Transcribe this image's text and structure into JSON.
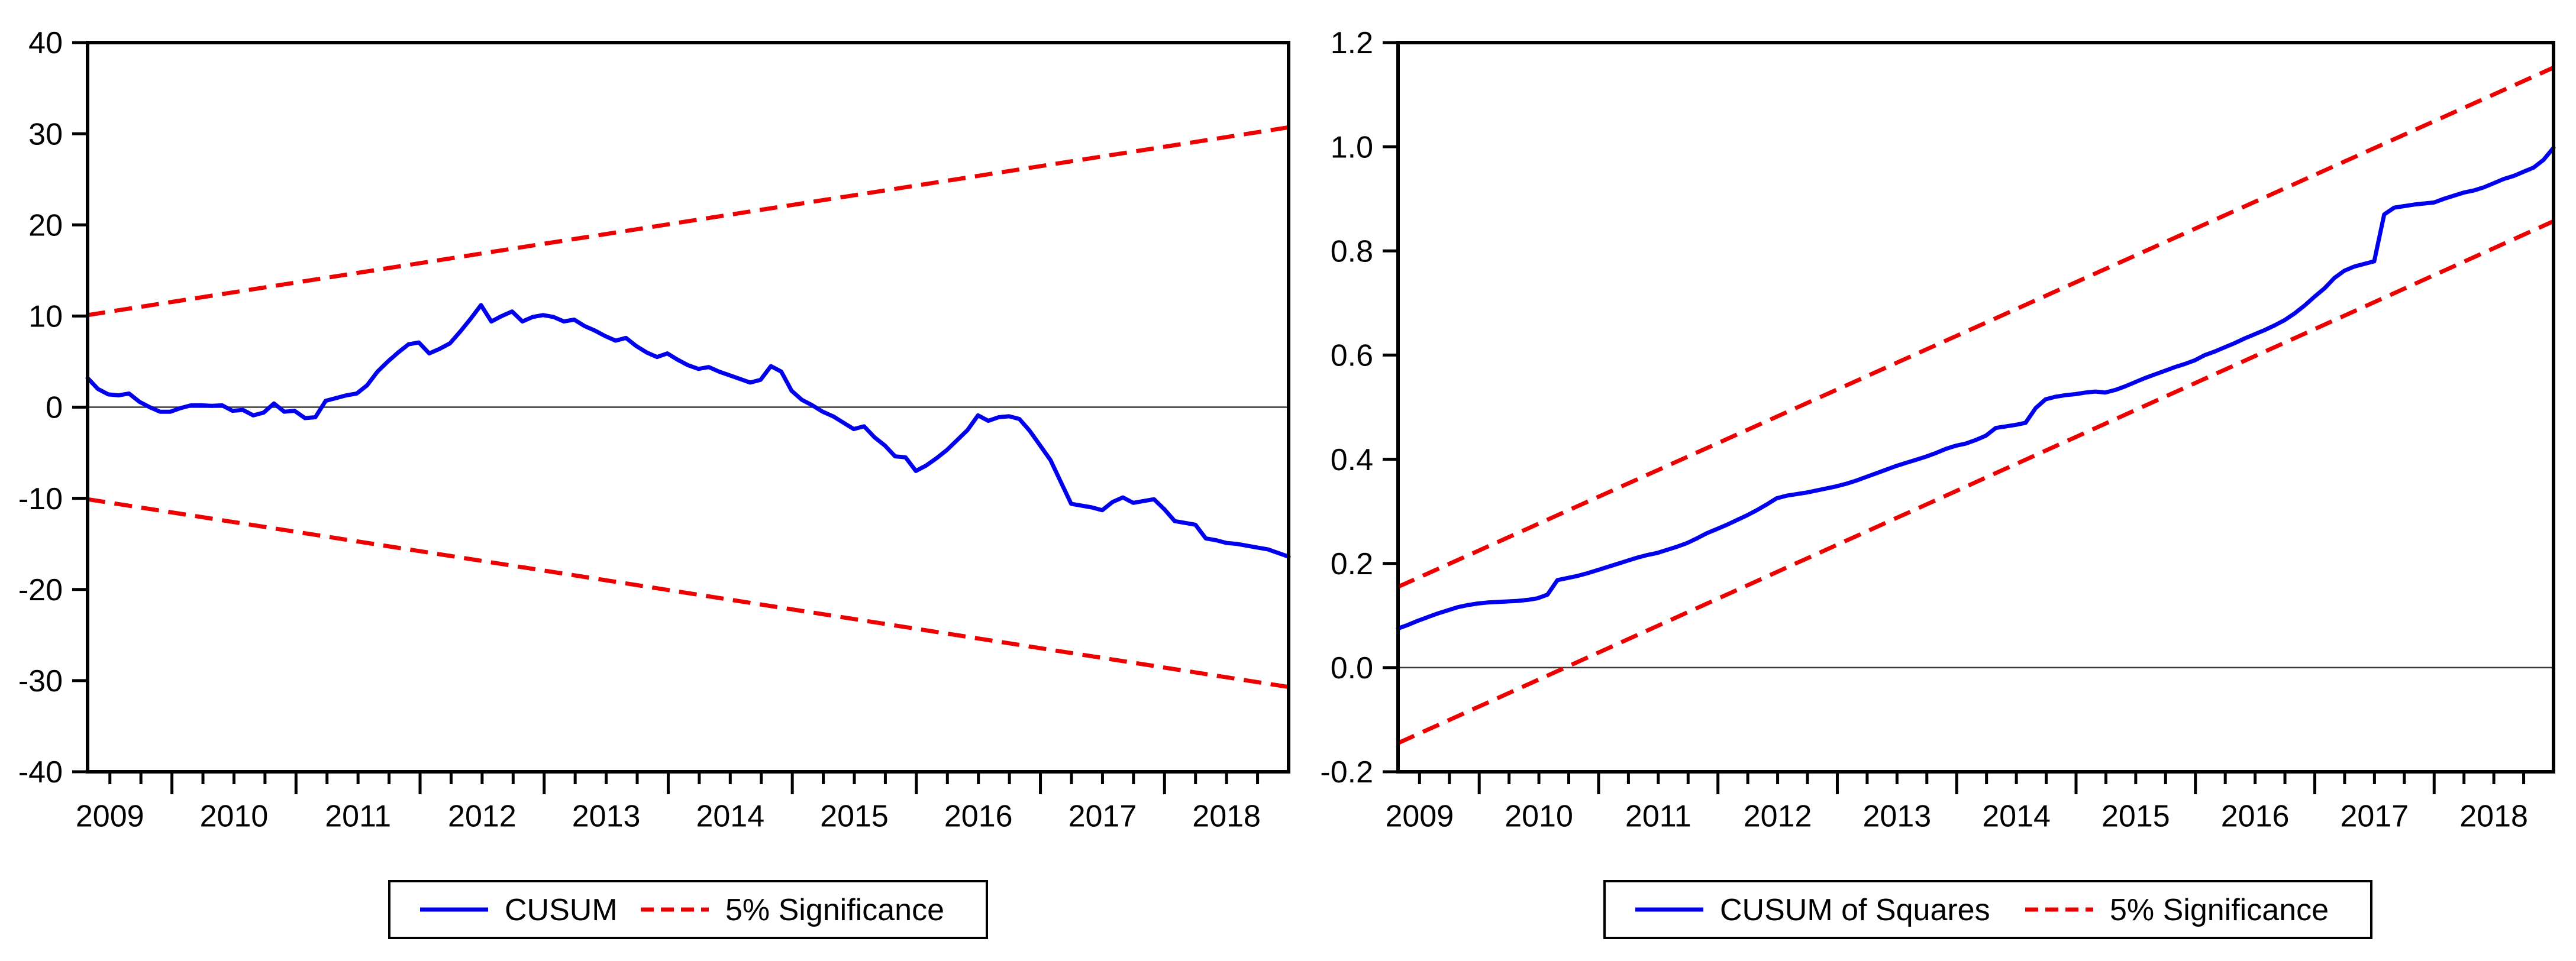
{
  "figure": {
    "background": "#ffffff",
    "description": "CUSUM and CUSUM of Squares recursive stability test charts with 5% significance bounds"
  },
  "chart_data": [
    {
      "type": "line",
      "id": "cusum",
      "title": "",
      "xlabel": "",
      "ylabel": "",
      "x_start": 2009.32,
      "x_end": 2019.0,
      "x_tick_labels": [
        "2009",
        "2010",
        "2011",
        "2012",
        "2013",
        "2014",
        "2015",
        "2016",
        "2017",
        "2018"
      ],
      "ylim": [
        -40,
        40
      ],
      "y_ticks": [
        40,
        30,
        20,
        10,
        0,
        -10,
        -20,
        -30,
        -40
      ],
      "y_tick_labels": [
        "40",
        "30",
        "20",
        "10",
        "0",
        "-10",
        "-20",
        "-30",
        "-40"
      ],
      "grid": false,
      "zero_line": 0,
      "series": [
        {
          "name": "CUSUM",
          "color": "#0000ee",
          "style": "solid",
          "frequency": "monthly",
          "values": [
            3.2,
            2.0,
            1.4,
            1.3,
            1.5,
            0.6,
            0.0,
            -0.5,
            -0.5,
            -0.1,
            0.2,
            0.2,
            0.15,
            0.2,
            -0.4,
            -0.3,
            -0.9,
            -0.6,
            0.4,
            -0.5,
            -0.4,
            -1.2,
            -1.1,
            0.7,
            1.0,
            1.3,
            1.5,
            2.4,
            3.9,
            5.0,
            6.0,
            6.9,
            7.1,
            5.9,
            6.4,
            7.0,
            8.3,
            9.7,
            11.2,
            9.4,
            10.0,
            10.5,
            9.4,
            9.9,
            10.1,
            9.9,
            9.4,
            9.6,
            8.9,
            8.4,
            7.8,
            7.3,
            7.6,
            6.7,
            6.0,
            5.5,
            5.9,
            5.2,
            4.6,
            4.2,
            4.4,
            3.9,
            3.5,
            3.1,
            2.7,
            3.0,
            4.5,
            3.9,
            1.8,
            0.8,
            0.2,
            -0.5,
            -1.0,
            -1.7,
            -2.4,
            -2.1,
            -3.3,
            -4.2,
            -5.4,
            -5.5,
            -7.0,
            -6.4,
            -5.6,
            -4.7,
            -3.6,
            -2.5,
            -0.9,
            -1.5,
            -1.1,
            -1.0,
            -1.3,
            -2.6,
            -4.2,
            -5.8,
            -8.2,
            -10.6,
            -10.8,
            -11.0,
            -11.3,
            -10.4,
            -9.9,
            -10.5,
            -10.3,
            -10.1,
            -11.2,
            -12.5,
            -12.7,
            -12.9,
            -14.4,
            -14.6,
            -14.9,
            -15.0,
            -15.2,
            -15.4,
            -15.6,
            -16.0,
            -16.4
          ]
        }
      ],
      "bounds": {
        "name": "5% Significance",
        "color": "#ee0000",
        "style": "dashed",
        "upper": {
          "start": 10.1,
          "end": 30.7
        },
        "lower": {
          "start": -10.1,
          "end": -30.7
        }
      },
      "legend": {
        "position": "bottom-center",
        "entries": [
          {
            "label": "CUSUM",
            "color": "#0000ee",
            "dashed": false
          },
          {
            "label": "5% Significance",
            "color": "#ee0000",
            "dashed": true
          }
        ]
      }
    },
    {
      "type": "line",
      "id": "cusum-of-squares",
      "title": "",
      "xlabel": "",
      "ylabel": "",
      "x_start": 2009.32,
      "x_end": 2019.0,
      "x_tick_labels": [
        "2009",
        "2010",
        "2011",
        "2012",
        "2013",
        "2014",
        "2015",
        "2016",
        "2017",
        "2018"
      ],
      "ylim": [
        -0.2,
        1.2
      ],
      "y_ticks": [
        1.2,
        1.0,
        0.8,
        0.6,
        0.4,
        0.2,
        0.0,
        -0.2
      ],
      "y_tick_labels": [
        "1.2",
        "1.0",
        "0.8",
        "0.6",
        "0.4",
        "0.2",
        "0.0",
        "-0.2"
      ],
      "grid": false,
      "zero_line": 0,
      "series": [
        {
          "name": "CUSUM of Squares",
          "color": "#0000ee",
          "style": "solid",
          "frequency": "monthly",
          "values": [
            0.075,
            0.082,
            0.09,
            0.097,
            0.104,
            0.11,
            0.116,
            0.12,
            0.123,
            0.125,
            0.126,
            0.127,
            0.128,
            0.13,
            0.133,
            0.14,
            0.168,
            0.172,
            0.176,
            0.181,
            0.187,
            0.193,
            0.199,
            0.205,
            0.211,
            0.216,
            0.22,
            0.226,
            0.232,
            0.239,
            0.248,
            0.258,
            0.266,
            0.274,
            0.283,
            0.292,
            0.302,
            0.313,
            0.325,
            0.33,
            0.333,
            0.336,
            0.34,
            0.344,
            0.348,
            0.353,
            0.359,
            0.366,
            0.373,
            0.38,
            0.387,
            0.393,
            0.399,
            0.405,
            0.412,
            0.42,
            0.426,
            0.43,
            0.437,
            0.445,
            0.46,
            0.463,
            0.466,
            0.47,
            0.498,
            0.515,
            0.52,
            0.523,
            0.525,
            0.528,
            0.53,
            0.528,
            0.533,
            0.54,
            0.548,
            0.556,
            0.563,
            0.57,
            0.577,
            0.583,
            0.59,
            0.6,
            0.607,
            0.615,
            0.623,
            0.632,
            0.64,
            0.648,
            0.657,
            0.667,
            0.68,
            0.695,
            0.712,
            0.728,
            0.748,
            0.762,
            0.77,
            0.775,
            0.78,
            0.87,
            0.883,
            0.886,
            0.889,
            0.891,
            0.893,
            0.9,
            0.906,
            0.912,
            0.916,
            0.922,
            0.93,
            0.938,
            0.944,
            0.952,
            0.96,
            0.975,
            0.998
          ]
        }
      ],
      "bounds": {
        "name": "5% Significance",
        "color": "#ee0000",
        "style": "dashed",
        "upper": {
          "start": 0.155,
          "end": 1.152
        },
        "lower": {
          "start": -0.145,
          "end": 0.857
        }
      },
      "legend": {
        "position": "bottom-center",
        "entries": [
          {
            "label": "CUSUM of Squares",
            "color": "#0000ee",
            "dashed": false
          },
          {
            "label": "5% Significance",
            "color": "#ee0000",
            "dashed": true
          }
        ]
      }
    }
  ]
}
